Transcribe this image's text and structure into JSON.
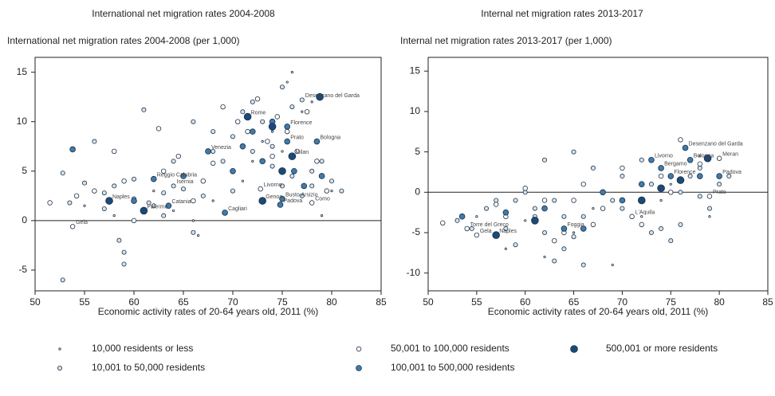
{
  "chart_data": [
    {
      "type": "scatter",
      "title": "International net migration rates 2004-2008",
      "subtitle": "International net migration rates 2004-2008 (per 1,000)",
      "xlabel": "Economic activity rates of 20-64 years old, 2011 (%)",
      "xlim": [
        50,
        85
      ],
      "ylim": [
        -7.1,
        16.5
      ],
      "xticks": [
        50,
        55,
        60,
        65,
        70,
        75,
        80,
        85
      ],
      "yticks": [
        -5,
        0,
        5,
        10,
        15
      ],
      "reference_line": 0,
      "series": [
        {
          "name": "10,000 residents or less",
          "color": "#ffffff",
          "x": [
            55,
            58,
            60,
            62,
            64,
            66,
            68,
            70,
            72,
            73,
            74,
            75,
            76,
            77,
            78,
            79,
            66.5,
            75.5,
            80,
            71
          ],
          "values": [
            1.5,
            0.5,
            2,
            3,
            1,
            0,
            2,
            5,
            6,
            8,
            9,
            7,
            15,
            11,
            12,
            0.5,
            -1.5,
            14,
            3,
            4
          ]
        },
        {
          "name": "10,001 to 50,000 residents",
          "color": "#d6e4ef",
          "x": [
            52.8,
            53.5,
            55,
            56,
            57,
            58,
            59,
            60,
            61,
            62,
            63,
            64,
            65,
            66,
            67,
            68,
            69,
            70,
            71,
            72,
            73,
            74,
            75,
            76,
            77,
            78,
            79,
            80,
            81,
            58.5,
            59,
            61.5,
            63,
            66,
            70,
            72,
            74,
            76,
            78,
            57,
            60,
            64,
            68,
            73,
            75,
            52.8,
            77
          ],
          "values": [
            4.8,
            1.8,
            3.8,
            8,
            1.2,
            3.5,
            -3.2,
            2.2,
            11.2,
            1.5,
            2.8,
            3.5,
            3.2,
            10,
            2.5,
            9,
            6,
            8.5,
            11,
            12,
            10,
            7.5,
            13.5,
            11.5,
            12.2,
            5,
            6,
            4,
            3,
            -2,
            -4.4,
            1.8,
            0.5,
            -1.2,
            3,
            7,
            5.5,
            4.5,
            3.5,
            2.8,
            4.2,
            6,
            7,
            6,
            3.5,
            -6,
            2.5
          ],
          "labels": [
            null,
            null,
            null,
            null,
            null,
            null,
            null,
            null,
            null,
            null,
            null,
            "Isernia",
            null,
            null,
            null,
            null,
            null,
            null,
            null,
            null,
            null,
            null,
            null,
            null,
            "Desenzano del Garda",
            null,
            null,
            null,
            null,
            null,
            null,
            null,
            null,
            null,
            null,
            null,
            null,
            null,
            null,
            null,
            null,
            null,
            null,
            null,
            null,
            null,
            null
          ]
        },
        {
          "name": "50,001 to 100,000 residents",
          "color": "#ffffff",
          "x": [
            51.5,
            54.2,
            56,
            58,
            59,
            61,
            62.5,
            63,
            64.5,
            66,
            67,
            69,
            70.5,
            71.5,
            72.5,
            73.5,
            74.5,
            75.5,
            76.5,
            77.5,
            78.5,
            79.5,
            60,
            65,
            68,
            72.8,
            74,
            78,
            53.8
          ],
          "values": [
            1.8,
            2.5,
            3,
            7,
            4,
            1,
            9.3,
            5,
            6.5,
            2,
            4,
            11.5,
            10,
            9,
            12.3,
            8,
            10.5,
            9,
            7,
            11,
            6,
            3,
            0,
            4.5,
            5.8,
            3.2,
            6.5,
            1.8,
            -0.6
          ],
          "labels": [
            null,
            null,
            null,
            null,
            null,
            null,
            null,
            null,
            null,
            null,
            null,
            null,
            null,
            null,
            null,
            null,
            null,
            null,
            null,
            null,
            null,
            null,
            null,
            null,
            null,
            "Livorno",
            null,
            "Como",
            "Gela"
          ]
        },
        {
          "name": "100,001 to 500,000 residents",
          "color": "#3f7bab",
          "x": [
            53.8,
            62,
            63.5,
            67.5,
            69.2,
            72,
            74,
            75.5,
            75.5,
            78.5,
            75,
            73,
            70,
            71,
            65,
            60,
            76.2,
            77.2,
            79,
            74.8
          ],
          "values": [
            7.2,
            4.2,
            1.5,
            7,
            0.8,
            9,
            10,
            9.5,
            8,
            8,
            2.2,
            6,
            5,
            7.5,
            4.5,
            2,
            5,
            3.5,
            4.5,
            1.6
          ],
          "labels": [
            null,
            "Reggio Calabria",
            "Catania",
            "Venezia",
            "Cagliari",
            null,
            null,
            "Florence",
            "Prato",
            "Bologna",
            "Busto Arsizio",
            null,
            null,
            null,
            null,
            null,
            null,
            null,
            null,
            "Padova"
          ]
        },
        {
          "name": "500,001 or more residents",
          "color": "#1c4a78",
          "x": [
            57.5,
            61,
            71.5,
            73,
            76,
            78.8,
            75,
            74
          ],
          "values": [
            2,
            1,
            10.5,
            2,
            6.5,
            12.5,
            5,
            9.5
          ],
          "labels": [
            "Naples",
            "Palermo",
            "Rome",
            "Genoa",
            "Milan",
            null,
            null,
            null
          ]
        }
      ]
    },
    {
      "type": "scatter",
      "title": "Internal net migration rates 2013-2017",
      "subtitle": "Internal net migration rates 2013-2017 (per 1,000)",
      "xlabel": "Economic activity rates of 20-64 years old, 2011 (%)",
      "xlim": [
        50,
        85
      ],
      "ylim": [
        -12.2,
        16.7
      ],
      "xticks": [
        50,
        55,
        60,
        65,
        70,
        75,
        80,
        85
      ],
      "yticks": [
        -10,
        -5,
        0,
        5,
        10,
        15
      ],
      "reference_line": 0,
      "series": [
        {
          "name": "10,000 residents or less",
          "color": "#ffffff",
          "x": [
            55,
            58,
            62,
            65,
            69,
            72,
            75,
            78,
            60,
            67,
            74,
            77,
            79
          ],
          "values": [
            -3,
            -7,
            -8,
            -5,
            -9,
            -3,
            1,
            4.5,
            -3.5,
            -2,
            -1,
            2,
            -3
          ]
        },
        {
          "name": "10,001 to 50,000 residents",
          "color": "#d6e4ef",
          "x": [
            53,
            54.5,
            56,
            57,
            58,
            59,
            60,
            61,
            62,
            63,
            64,
            65,
            66,
            67,
            68,
            69,
            70,
            71,
            72,
            73,
            74,
            75,
            76,
            77,
            78,
            79,
            80,
            81,
            62,
            65,
            66,
            59,
            61,
            63,
            64,
            70,
            73,
            76,
            78
          ],
          "values": [
            -3.5,
            -4.5,
            -2,
            -1,
            -4.5,
            -6.5,
            0,
            -2,
            4,
            -8.5,
            -3,
            5,
            -3,
            3,
            0,
            -1,
            2,
            -3,
            4,
            1,
            -4.5,
            -6,
            0,
            2,
            3,
            -2,
            1,
            2,
            -5,
            -5.5,
            -9,
            -1,
            -3,
            -1,
            -7,
            -2,
            -5,
            -4,
            -0.5
          ]
        },
        {
          "name": "50,001 to 100,000 residents",
          "color": "#ffffff",
          "x": [
            54,
            51.5,
            55,
            57,
            60,
            62,
            64,
            66,
            68,
            70,
            72,
            74,
            76,
            78,
            80,
            58,
            63,
            67,
            71,
            75,
            79,
            65
          ],
          "values": [
            -4.5,
            -3.8,
            -5.3,
            -1.5,
            0.5,
            -1,
            -5,
            1,
            -2,
            3,
            -4,
            2,
            6.5,
            3.5,
            4.2,
            -3,
            -6,
            -4,
            -3,
            0,
            -0.5,
            -1
          ],
          "labels": [
            "Torre del Greco",
            null,
            "Gela",
            null,
            null,
            null,
            null,
            null,
            null,
            null,
            null,
            null,
            null,
            null,
            "Meran",
            null,
            null,
            null,
            "L'Aquila",
            null,
            "Prato",
            null
          ]
        },
        {
          "name": "100,001 to 500,000 residents",
          "color": "#3f7bab",
          "x": [
            53.5,
            64,
            66,
            73,
            74,
            75,
            76.5,
            77,
            80,
            72,
            68,
            62,
            58,
            70,
            78
          ],
          "values": [
            -3,
            -4.5,
            -4.5,
            4,
            3,
            2,
            5.5,
            4,
            2,
            1,
            0,
            -2,
            -2.5,
            -1,
            2
          ],
          "labels": [
            null,
            "Foggia",
            null,
            "Livorno",
            "Bergamo",
            "Florence",
            "Desenzano del Garda",
            "Bologna",
            "Padova",
            null,
            null,
            null,
            null,
            null,
            null
          ]
        },
        {
          "name": "500,001 or more residents",
          "color": "#1c4a78",
          "x": [
            57,
            61,
            74,
            76,
            78.8,
            72
          ],
          "values": [
            -5.3,
            -3.5,
            0.5,
            1.5,
            4.2,
            -1
          ],
          "labels": [
            "Naples",
            null,
            null,
            null,
            null,
            null
          ]
        }
      ]
    }
  ]
}
